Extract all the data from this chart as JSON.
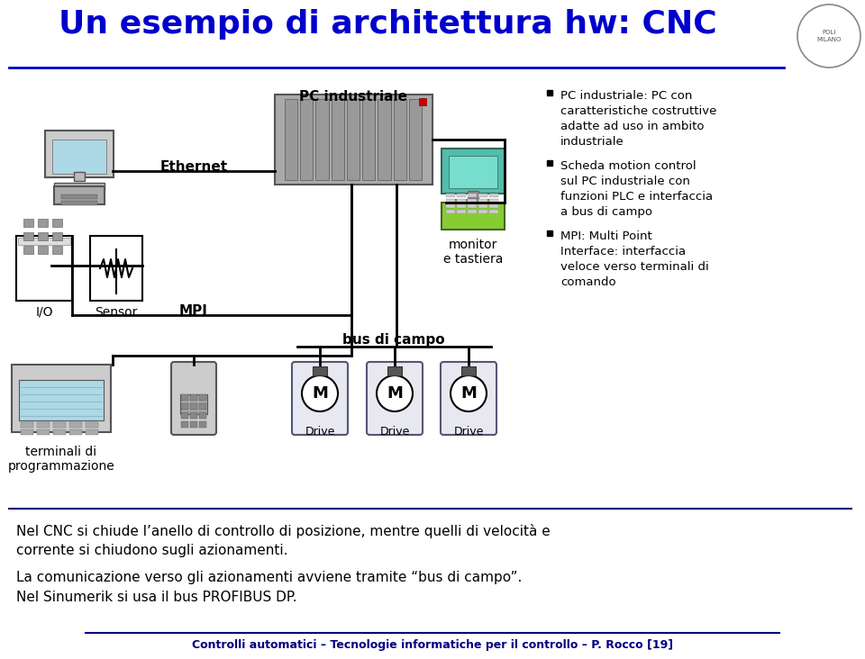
{
  "title": "Un esempio di architettura hw: CNC",
  "title_color": "#0000CC",
  "background_color": "#FFFFFF",
  "footer_line1": "Controlli automatici – Tecnologie informatiche per il controllo – P. Rocco [19]",
  "footer_color": "#000080",
  "bullet1_lines": [
    "PC industriale: PC con",
    "caratteristiche costruttive",
    "adatte ad uso in ambito",
    "industriale"
  ],
  "bullet2_lines": [
    "Scheda motion control",
    "sul PC industriale con",
    "funzioni PLC e interfaccia",
    "a bus di campo"
  ],
  "bullet3_lines": [
    "MPI: Multi Point",
    "Interface: interfaccia",
    "veloce verso terminali di",
    "comando"
  ],
  "bottom_text1": "Nel CNC si chiude l’anello di controllo di posizione, mentre quelli di velocità e",
  "bottom_text2": "corrente si chiudono sugli azionamenti.",
  "bottom_text3": "La comunicazione verso gli azionamenti avviene tramite “bus di campo”.",
  "bottom_text4": "Nel Sinumerik si usa il bus PROFIBUS DP.",
  "label_pc_industriale": "PC industriale",
  "label_ethernet": "Ethernet",
  "label_io": "I/O",
  "label_sensor": "Sensor",
  "label_mpi": "MPI",
  "label_monitor": "monitor\ne tastiera",
  "label_bus": "bus di campo",
  "label_drive": "Drive",
  "label_motor": "M",
  "label_terminali": "terminali di\nprogrammazione",
  "wire_color": "#000000",
  "line_width": 2.0
}
